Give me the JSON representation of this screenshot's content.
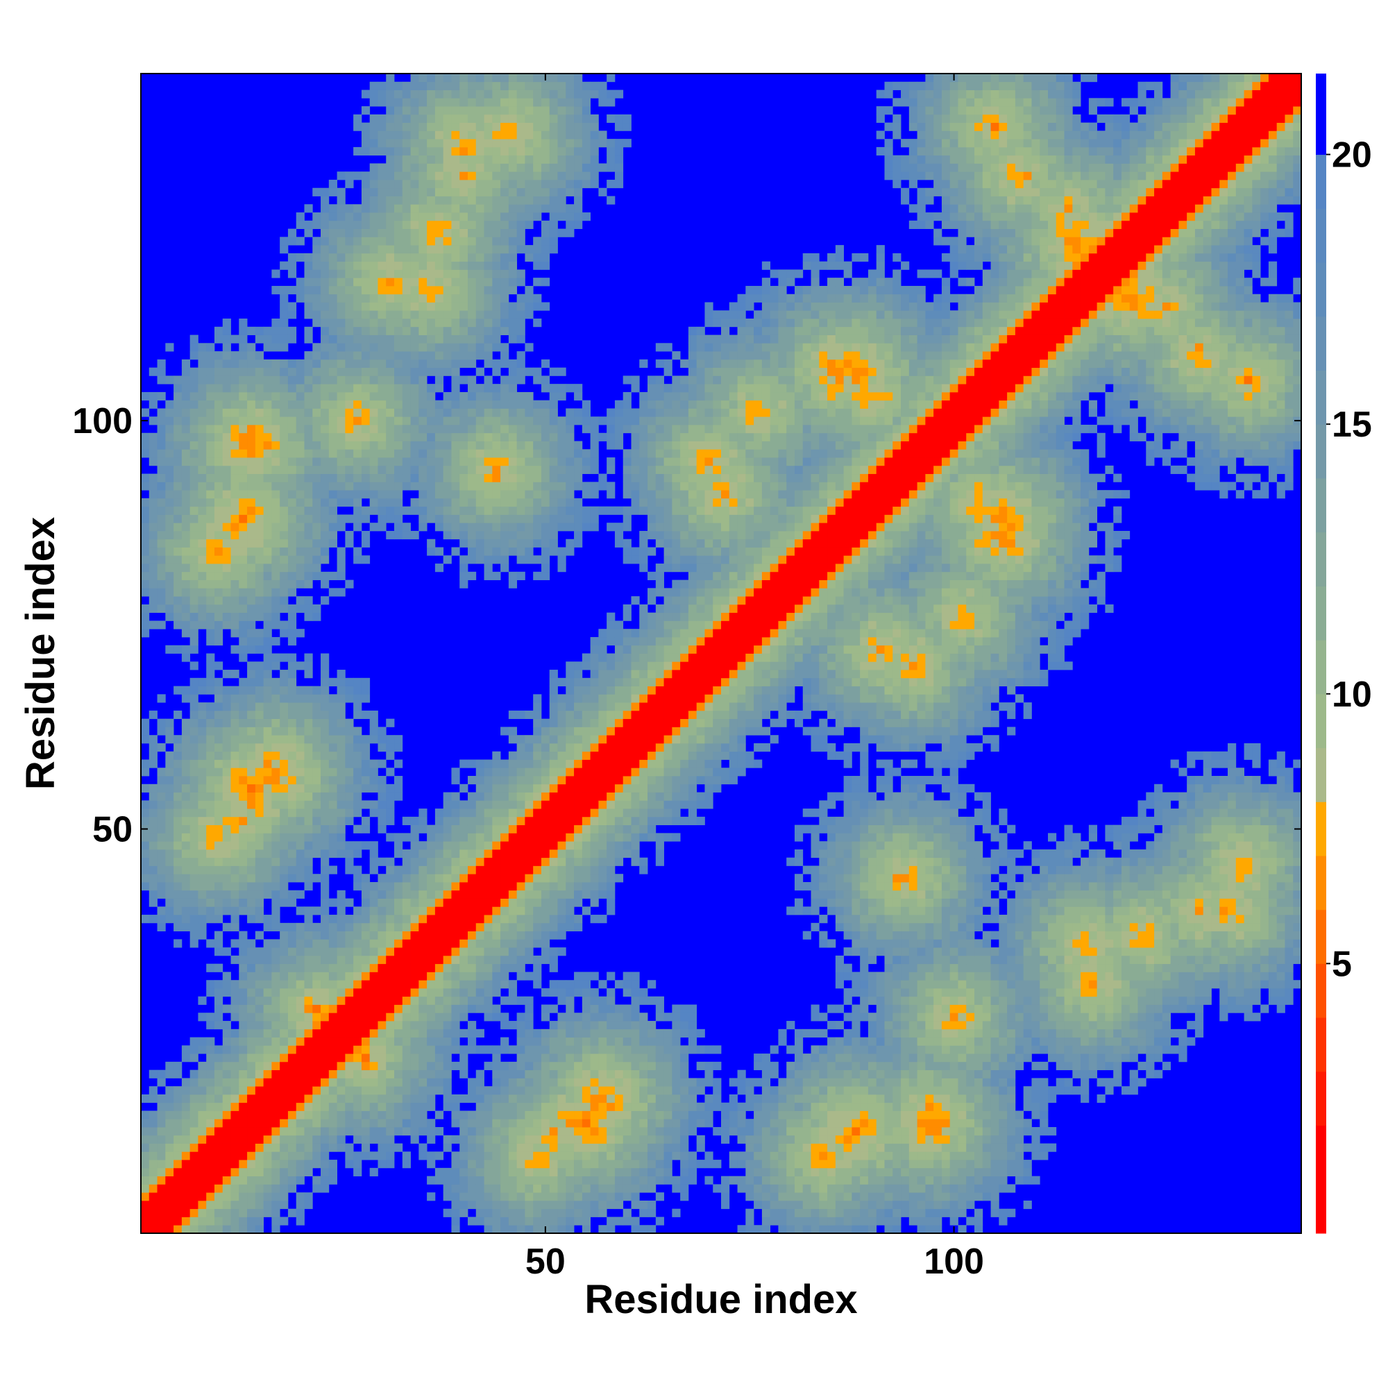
{
  "chart_data": {
    "type": "heatmap",
    "title": "",
    "xlabel": "Residue index",
    "ylabel": "Residue index",
    "n_residues": 142,
    "xlim": [
      0.5,
      142.5
    ],
    "ylim": [
      0.5,
      142.5
    ],
    "x_ticks": [
      50,
      100
    ],
    "y_ticks": [
      50,
      100
    ],
    "colorbar": {
      "range": [
        0,
        21.5
      ],
      "ticks": [
        5,
        10,
        15,
        20
      ],
      "levels": [
        {
          "max": 2.0,
          "color": "#ff0000"
        },
        {
          "max": 3.0,
          "color": "#ff1a00"
        },
        {
          "max": 4.0,
          "color": "#ff3300"
        },
        {
          "max": 5.0,
          "color": "#ff5000"
        },
        {
          "max": 6.0,
          "color": "#ff6e00"
        },
        {
          "max": 7.0,
          "color": "#ff8c00"
        },
        {
          "max": 8.0,
          "color": "#ffa800"
        },
        {
          "max": 9.0,
          "color": "#aab98a"
        },
        {
          "max": 10.0,
          "color": "#9db98a"
        },
        {
          "max": 11.0,
          "color": "#95b48e"
        },
        {
          "max": 12.0,
          "color": "#8aac94"
        },
        {
          "max": 13.0,
          "color": "#84a69a"
        },
        {
          "max": 14.0,
          "color": "#7ca0a0"
        },
        {
          "max": 15.0,
          "color": "#7499a8"
        },
        {
          "max": 16.0,
          "color": "#6e96ae"
        },
        {
          "max": 17.0,
          "color": "#6690b4"
        },
        {
          "max": 18.0,
          "color": "#5e8cba"
        },
        {
          "max": 19.0,
          "color": "#5a89bf"
        },
        {
          "max": 20.0,
          "color": "#5585c4"
        },
        {
          "max": 21.5,
          "color": "#0000ff"
        }
      ]
    },
    "diagonal_band": {
      "red_halfwidth": 3,
      "orange_halfwidth": 4
    },
    "contact_features": [
      {
        "x": 14,
        "y": 97,
        "value": 6
      },
      {
        "x": 13,
        "y": 88,
        "value": 6
      },
      {
        "x": 17,
        "y": 57,
        "value": 6
      },
      {
        "x": 12,
        "y": 51,
        "value": 7
      },
      {
        "x": 22,
        "y": 28,
        "value": 7
      },
      {
        "x": 55,
        "y": 14,
        "value": 6
      },
      {
        "x": 49,
        "y": 10,
        "value": 7
      },
      {
        "x": 88,
        "y": 13,
        "value": 6
      },
      {
        "x": 84,
        "y": 10,
        "value": 7
      },
      {
        "x": 100,
        "y": 27,
        "value": 7
      },
      {
        "x": 94,
        "y": 44,
        "value": 7
      },
      {
        "x": 91,
        "y": 72,
        "value": 7
      },
      {
        "x": 95,
        "y": 70,
        "value": 7
      },
      {
        "x": 103,
        "y": 90,
        "value": 7
      },
      {
        "x": 106,
        "y": 88,
        "value": 6
      },
      {
        "x": 86,
        "y": 106,
        "value": 6
      },
      {
        "x": 76,
        "y": 101,
        "value": 7
      },
      {
        "x": 45,
        "y": 135,
        "value": 7
      },
      {
        "x": 40,
        "y": 134,
        "value": 7
      },
      {
        "x": 31,
        "y": 117,
        "value": 7
      },
      {
        "x": 108,
        "y": 130,
        "value": 7
      },
      {
        "x": 115,
        "y": 122,
        "value": 6
      },
      {
        "x": 126,
        "y": 114,
        "value": 7
      },
      {
        "x": 136,
        "y": 105,
        "value": 7
      },
      {
        "x": 130,
        "y": 40,
        "value": 7
      },
      {
        "x": 123,
        "y": 37,
        "value": 7
      },
      {
        "x": 135,
        "y": 46,
        "value": 7
      },
      {
        "x": 116,
        "y": 36,
        "value": 7
      }
    ]
  }
}
